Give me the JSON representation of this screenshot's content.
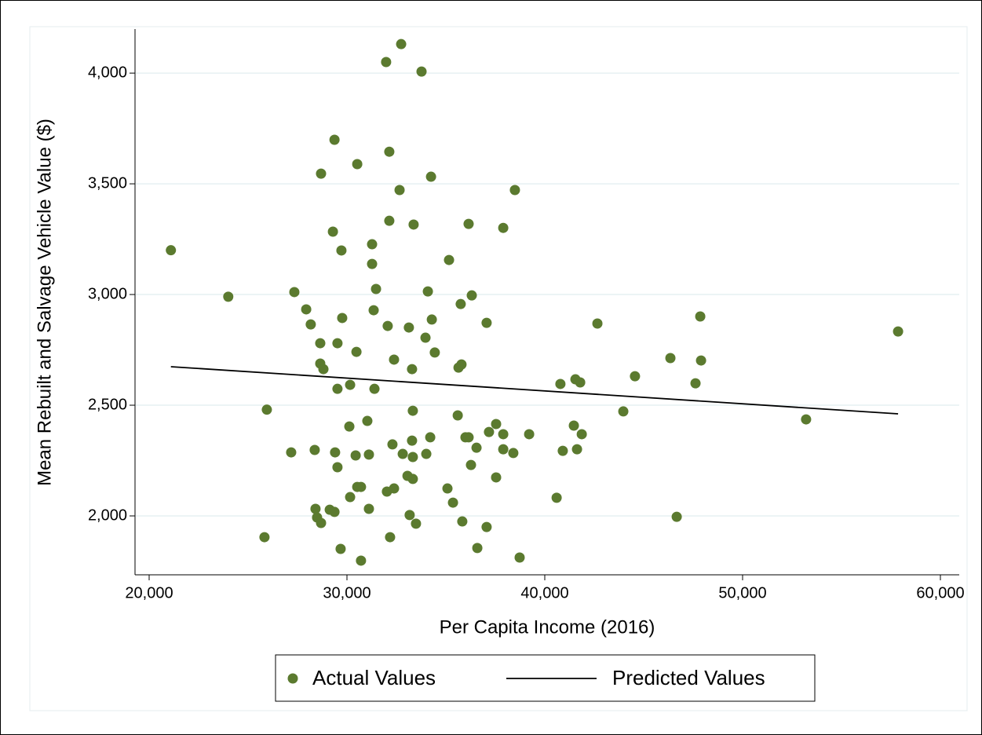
{
  "chart_data": {
    "type": "scatter",
    "x_label": "Per Capita Income (2016)",
    "y_label": "Mean Rebuilt and Salvage Vehicle Value ($)",
    "xlim": [
      19286,
      60952
    ],
    "ylim": [
      1734,
      4199
    ],
    "xticks": [
      {
        "value": 20000,
        "label": "20,000"
      },
      {
        "value": 30000,
        "label": "30,000"
      },
      {
        "value": 40000,
        "label": "40,000"
      },
      {
        "value": 50000,
        "label": "50,000"
      },
      {
        "value": 60000,
        "label": "60,000"
      }
    ],
    "yticks": [
      {
        "value": 2000,
        "label": "2,000"
      },
      {
        "value": 2500,
        "label": "2,500"
      },
      {
        "value": 3000,
        "label": "3,000"
      },
      {
        "value": 3500,
        "label": "3,500"
      },
      {
        "value": 4000,
        "label": "4,000"
      }
    ],
    "grid": true,
    "legend": "bottom",
    "series": [
      {
        "name": "Actual Values",
        "type": "scatter",
        "color": "#5b7a2f",
        "x": [
          21100,
          24000,
          25950,
          25830,
          27180,
          27340,
          27940,
          28170,
          28370,
          28410,
          28490,
          28690,
          28650,
          28650,
          28810,
          28690,
          29130,
          29370,
          29290,
          29370,
          29400,
          29520,
          29520,
          29520,
          29680,
          29720,
          29760,
          30160,
          30120,
          30160,
          30440,
          30480,
          30520,
          30520,
          30710,
          30710,
          31030,
          31110,
          31110,
          31270,
          31270,
          31350,
          31390,
          31470,
          31980,
          32020,
          32060,
          32140,
          32140,
          32180,
          32300,
          32380,
          32380,
          32660,
          32740,
          32820,
          33060,
          33130,
          33170,
          33290,
          33290,
          33330,
          33330,
          33370,
          33330,
          33490,
          33770,
          34010,
          33970,
          34090,
          34210,
          34250,
          34290,
          34440,
          35080,
          35160,
          35360,
          35600,
          35640,
          35750,
          35790,
          35830,
          35990,
          36150,
          36150,
          36270,
          36310,
          36550,
          36590,
          37060,
          37060,
          37180,
          37540,
          37540,
          37900,
          37900,
          37900,
          38410,
          38490,
          38730,
          39210,
          40600,
          40790,
          40910,
          41470,
          41550,
          41630,
          41790,
          41870,
          42660,
          43970,
          44560,
          46350,
          46670,
          47620,
          47860,
          47900,
          53210,
          57860
        ],
        "values": [
          3200,
          2990,
          2480,
          1904,
          2287,
          3011,
          2933,
          2865,
          2298,
          2032,
          1993,
          1968,
          2780,
          2688,
          2663,
          3546,
          2028,
          2018,
          3284,
          3699,
          2287,
          2780,
          2574,
          2220,
          1851,
          3199,
          2894,
          2592,
          2404,
          2085,
          2273,
          2741,
          3589,
          2131,
          2131,
          1798,
          2429,
          2277,
          2032,
          3227,
          3138,
          2929,
          2574,
          3025,
          4050,
          2110,
          2858,
          3645,
          3333,
          1904,
          2323,
          2124,
          2706,
          3472,
          4131,
          2280,
          2181,
          2851,
          2004,
          2340,
          2663,
          2475,
          2266,
          3316,
          2167,
          1965,
          4007,
          2280,
          2805,
          3014,
          2355,
          3532,
          2887,
          2738,
          2124,
          3156,
          2060,
          2454,
          2670,
          2957,
          2684,
          1975,
          2355,
          2355,
          3319,
          2230,
          2996,
          2308,
          1855,
          2872,
          1950,
          2379,
          2415,
          2174,
          3301,
          2369,
          2301,
          2284,
          3472,
          1812,
          2369,
          2082,
          2596,
          2294,
          2408,
          2617,
          2301,
          2603,
          2369,
          2869,
          2472,
          2631,
          2713,
          1996,
          2599,
          2901,
          2702,
          2436,
          2833
        ]
      },
      {
        "name": "Predicted Values",
        "type": "line",
        "color": "#000000",
        "x": [
          21100,
          57860
        ],
        "values": [
          2674,
          2461
        ]
      }
    ]
  }
}
